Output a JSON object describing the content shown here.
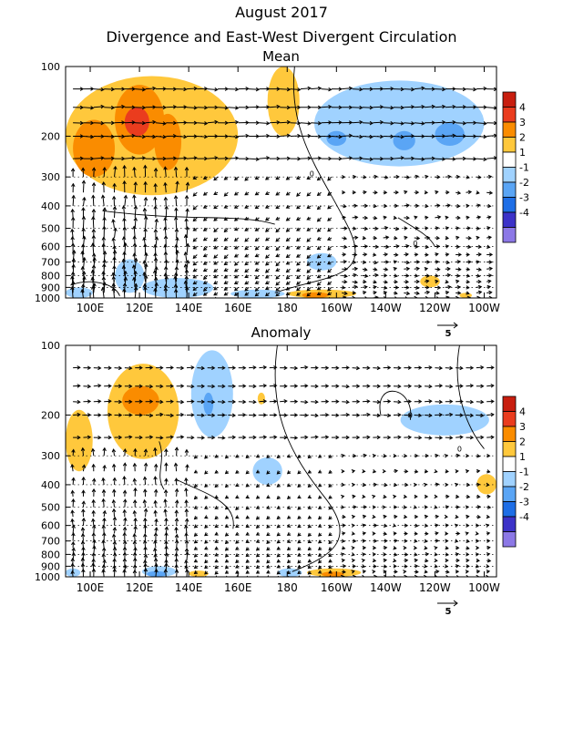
{
  "title": "August 2017",
  "subtitle": "Divergence and East-West Divergent Circulation",
  "chart_data": [
    {
      "type": "heatmap",
      "title": "Mean",
      "x_ticks": [
        "100E",
        "120E",
        "140E",
        "160E",
        "180",
        "160W",
        "140W",
        "120W",
        "100W"
      ],
      "x_tick_lon": [
        100,
        120,
        140,
        160,
        180,
        200,
        220,
        240,
        260
      ],
      "xlim_lon": [
        90,
        265
      ],
      "y_ticks": [
        "100",
        "200",
        "300",
        "400",
        "500",
        "600",
        "700",
        "800",
        "900",
        "1000"
      ],
      "y_tick_hpa": [
        100,
        200,
        300,
        400,
        500,
        600,
        700,
        800,
        900,
        1000
      ],
      "ylim_hpa": [
        100,
        1000
      ],
      "y_scale": "log",
      "contour_label": "0",
      "vector_reference": "5",
      "colorbar": {
        "labels": [
          "4",
          "3",
          "2",
          "1",
          "-1",
          "-2",
          "-3",
          "-4"
        ],
        "colors": [
          "#c81e0f",
          "#ea3c1e",
          "#fa8c00",
          "#ffc83c",
          "#ffffff",
          "#a0d2ff",
          "#5aa5f5",
          "#1e6ee6",
          "#3c32c8",
          "#8c78e6"
        ]
      },
      "shaded_regions": [
        {
          "lon": [
            90,
            160
          ],
          "hpa": [
            110,
            360
          ],
          "level": 1
        },
        {
          "lon": [
            93,
            110
          ],
          "hpa": [
            170,
            300
          ],
          "level": 2
        },
        {
          "lon": [
            110,
            130
          ],
          "hpa": [
            120,
            240
          ],
          "level": 2
        },
        {
          "lon": [
            126,
            137
          ],
          "hpa": [
            160,
            280
          ],
          "level": 2
        },
        {
          "lon": [
            114,
            124
          ],
          "hpa": [
            150,
            200
          ],
          "level": 3
        },
        {
          "lon": [
            172,
            185
          ],
          "hpa": [
            100,
            200
          ],
          "level": 1
        },
        {
          "lon": [
            191,
            260
          ],
          "hpa": [
            115,
            270
          ],
          "level": -1
        },
        {
          "lon": [
            196,
            204
          ],
          "hpa": [
            190,
            220
          ],
          "level": -2
        },
        {
          "lon": [
            223,
            232
          ],
          "hpa": [
            190,
            230
          ],
          "level": -2
        },
        {
          "lon": [
            240,
            252
          ],
          "hpa": [
            175,
            220
          ],
          "level": -2
        },
        {
          "lon": [
            188,
            200
          ],
          "hpa": [
            640,
            760
          ],
          "level": -1
        },
        {
          "lon": [
            110,
            122
          ],
          "hpa": [
            680,
            950
          ],
          "level": -1
        },
        {
          "lon": [
            90,
            101
          ],
          "hpa": [
            900,
            1000
          ],
          "level": -1
        },
        {
          "lon": [
            121,
            150
          ],
          "hpa": [
            820,
            1000
          ],
          "level": -1
        },
        {
          "lon": [
            157,
            179
          ],
          "hpa": [
            920,
            1000
          ],
          "level": -1
        },
        {
          "lon": [
            180,
            208
          ],
          "hpa": [
            920,
            1000
          ],
          "level": 1
        },
        {
          "lon": [
            186,
            197
          ],
          "hpa": [
            945,
            1000
          ],
          "level": 2
        },
        {
          "lon": [
            234,
            242
          ],
          "hpa": [
            800,
            900
          ],
          "level": 1
        },
        {
          "lon": [
            250,
            255
          ],
          "hpa": [
            950,
            1000
          ],
          "level": 1
        }
      ]
    },
    {
      "type": "heatmap",
      "title": "Anomaly",
      "x_ticks": [
        "100E",
        "120E",
        "140E",
        "160E",
        "180",
        "160W",
        "140W",
        "120W",
        "100W"
      ],
      "x_tick_lon": [
        100,
        120,
        140,
        160,
        180,
        200,
        220,
        240,
        260
      ],
      "xlim_lon": [
        90,
        265
      ],
      "y_ticks": [
        "100",
        "200",
        "300",
        "400",
        "500",
        "600",
        "700",
        "800",
        "900",
        "1000"
      ],
      "y_tick_hpa": [
        100,
        200,
        300,
        400,
        500,
        600,
        700,
        800,
        900,
        1000
      ],
      "ylim_hpa": [
        100,
        1000
      ],
      "y_scale": "log",
      "contour_label": "0",
      "vector_reference": "5",
      "colorbar": {
        "labels": [
          "4",
          "3",
          "2",
          "1",
          "-1",
          "-2",
          "-3",
          "-4"
        ],
        "colors": [
          "#c81e0f",
          "#ea3c1e",
          "#fa8c00",
          "#ffc83c",
          "#ffffff",
          "#a0d2ff",
          "#5aa5f5",
          "#1e6ee6",
          "#3c32c8",
          "#8c78e6"
        ]
      },
      "shaded_regions": [
        {
          "lon": [
            90,
            101
          ],
          "hpa": [
            190,
            350
          ],
          "level": 1
        },
        {
          "lon": [
            107,
            136
          ],
          "hpa": [
            120,
            310
          ],
          "level": 1
        },
        {
          "lon": [
            113,
            128
          ],
          "hpa": [
            150,
            200
          ],
          "level": 2
        },
        {
          "lon": [
            141,
            158
          ],
          "hpa": [
            105,
            250
          ],
          "level": -1
        },
        {
          "lon": [
            146,
            150
          ],
          "hpa": [
            160,
            200
          ],
          "level": -2
        },
        {
          "lon": [
            168,
            171
          ],
          "hpa": [
            160,
            180
          ],
          "level": 1
        },
        {
          "lon": [
            166,
            178
          ],
          "hpa": [
            305,
            400
          ],
          "level": -1
        },
        {
          "lon": [
            226,
            262
          ],
          "hpa": [
            180,
            245
          ],
          "level": -1
        },
        {
          "lon": [
            257,
            265
          ],
          "hpa": [
            360,
            440
          ],
          "level": 1
        },
        {
          "lon": [
            121,
            135
          ],
          "hpa": [
            900,
            1000
          ],
          "level": -1
        },
        {
          "lon": [
            123,
            131
          ],
          "hpa": [
            945,
            1000
          ],
          "level": -2
        },
        {
          "lon": [
            90,
            96
          ],
          "hpa": [
            920,
            1000
          ],
          "level": -1
        },
        {
          "lon": [
            140,
            148
          ],
          "hpa": [
            940,
            1000
          ],
          "level": 1
        },
        {
          "lon": [
            188,
            210
          ],
          "hpa": [
            920,
            1000
          ],
          "level": 1
        },
        {
          "lon": [
            194,
            203
          ],
          "hpa": [
            950,
            1000
          ],
          "level": 2
        },
        {
          "lon": [
            176,
            186
          ],
          "hpa": [
            920,
            1000
          ],
          "level": -1
        }
      ]
    }
  ]
}
